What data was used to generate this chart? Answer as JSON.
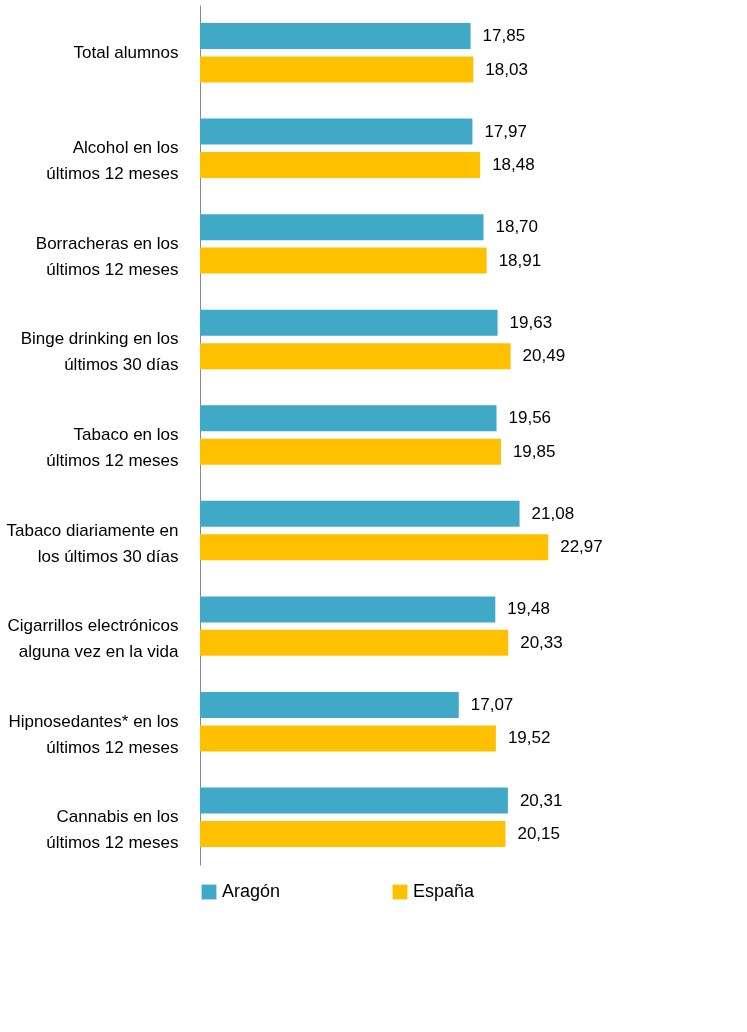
{
  "chart_data": {
    "type": "bar",
    "orientation": "horizontal",
    "legend": "bottom",
    "grid": false,
    "categories": [
      "Total alumnos",
      "Alcohol en los\núltimos 12 meses",
      "Borracheras en los\núltimos 12 meses",
      "Binge drinking en los\núltimos 30 días",
      "Tabaco en los\núltimos 12 meses",
      "Tabaco diariamente en\nlos últimos 30 días",
      "Cigarrillos electrónicos\nalguna vez en la vida",
      "Hipnosedantes* en los\núltimos 12 meses",
      "Cannabis en los\núltimos 12 meses"
    ],
    "series": [
      {
        "name": "Aragón",
        "color": "#3fa9c7",
        "values": [
          17.85,
          17.97,
          18.7,
          19.63,
          19.56,
          21.08,
          19.48,
          17.07,
          20.31
        ],
        "value_labels": [
          "17,85",
          "17,97",
          "18,70",
          "19,63",
          "19,56",
          "21,08",
          "19,48",
          "17,07",
          "20,31"
        ]
      },
      {
        "name": "España",
        "color": "#ffc000",
        "values": [
          18.03,
          18.48,
          18.91,
          20.49,
          19.85,
          22.97,
          20.33,
          19.52,
          20.15
        ],
        "value_labels": [
          "18,03",
          "18,48",
          "18,91",
          "20,49",
          "19,85",
          "22,97",
          "20,33",
          "19,52",
          "20,15"
        ]
      }
    ]
  }
}
